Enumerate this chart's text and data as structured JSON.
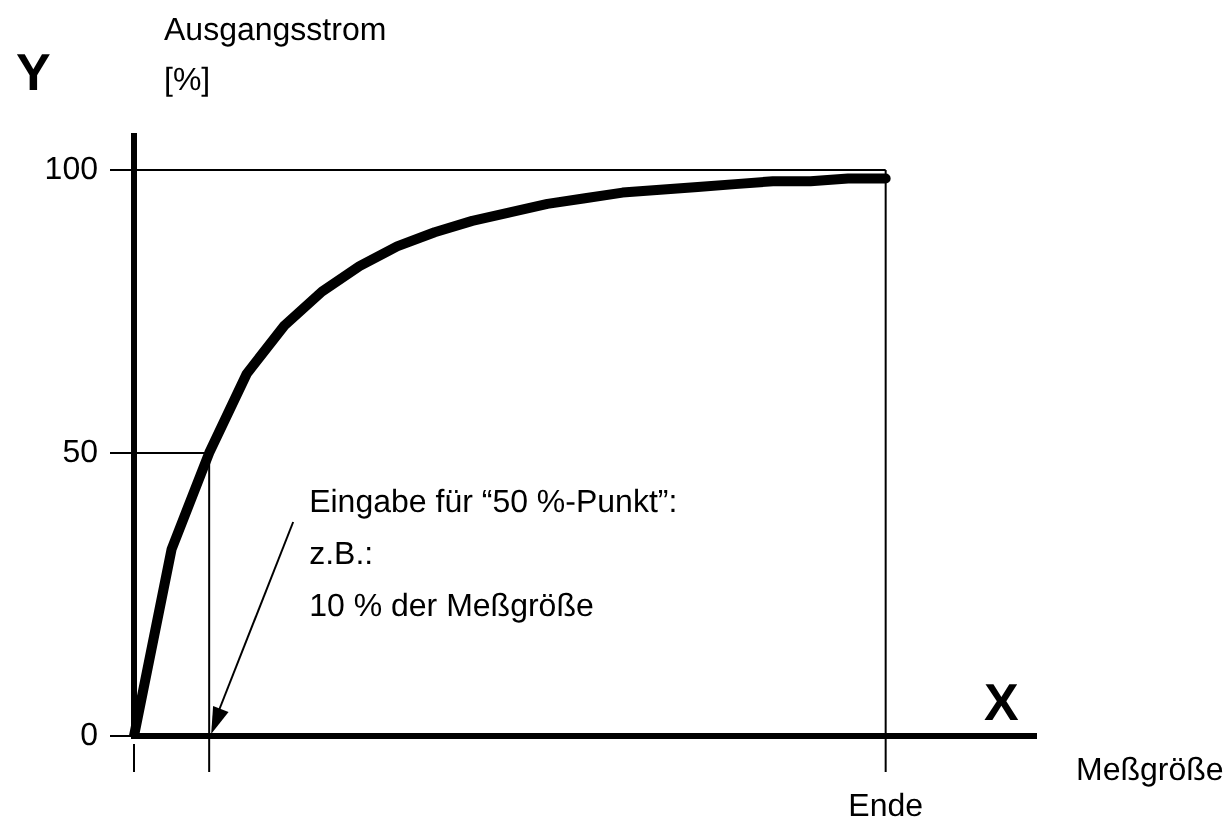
{
  "chart_data": {
    "type": "line",
    "ylabel": "Ausgangsstrom [%]",
    "xlabel": "Meßgröße",
    "categories": [
      null,
      null,
      null,
      null,
      null,
      null,
      null,
      null,
      null,
      null,
      null,
      null,
      null,
      null,
      null,
      null,
      null,
      null,
      null,
      null,
      "Ende",
      null,
      null,
      null,
      null
    ],
    "series": [
      {
        "color": "#000000",
        "values": [
          0,
          33,
          50,
          64,
          72.5,
          78.5,
          83,
          86.5,
          89,
          91,
          92.5,
          94,
          95,
          96,
          96.5,
          97,
          97.5,
          98,
          98,
          98.5,
          98.5,
          null,
          null,
          null,
          null
        ]
      }
    ],
    "ylim": [
      0,
      106
    ],
    "yticks": [
      0,
      50,
      100
    ],
    "ref_lines": [
      {
        "axis": "y",
        "value": 100
      },
      {
        "axis": "x",
        "value": "Ende"
      },
      {
        "axis": "y",
        "value": 50
      }
    ],
    "annotations": [
      "Y",
      "X",
      "Eingabe für “50 %-Punkt”:\nz.B.:\n10 % der Meßgröße"
    ],
    "grid": false,
    "legend": false
  }
}
